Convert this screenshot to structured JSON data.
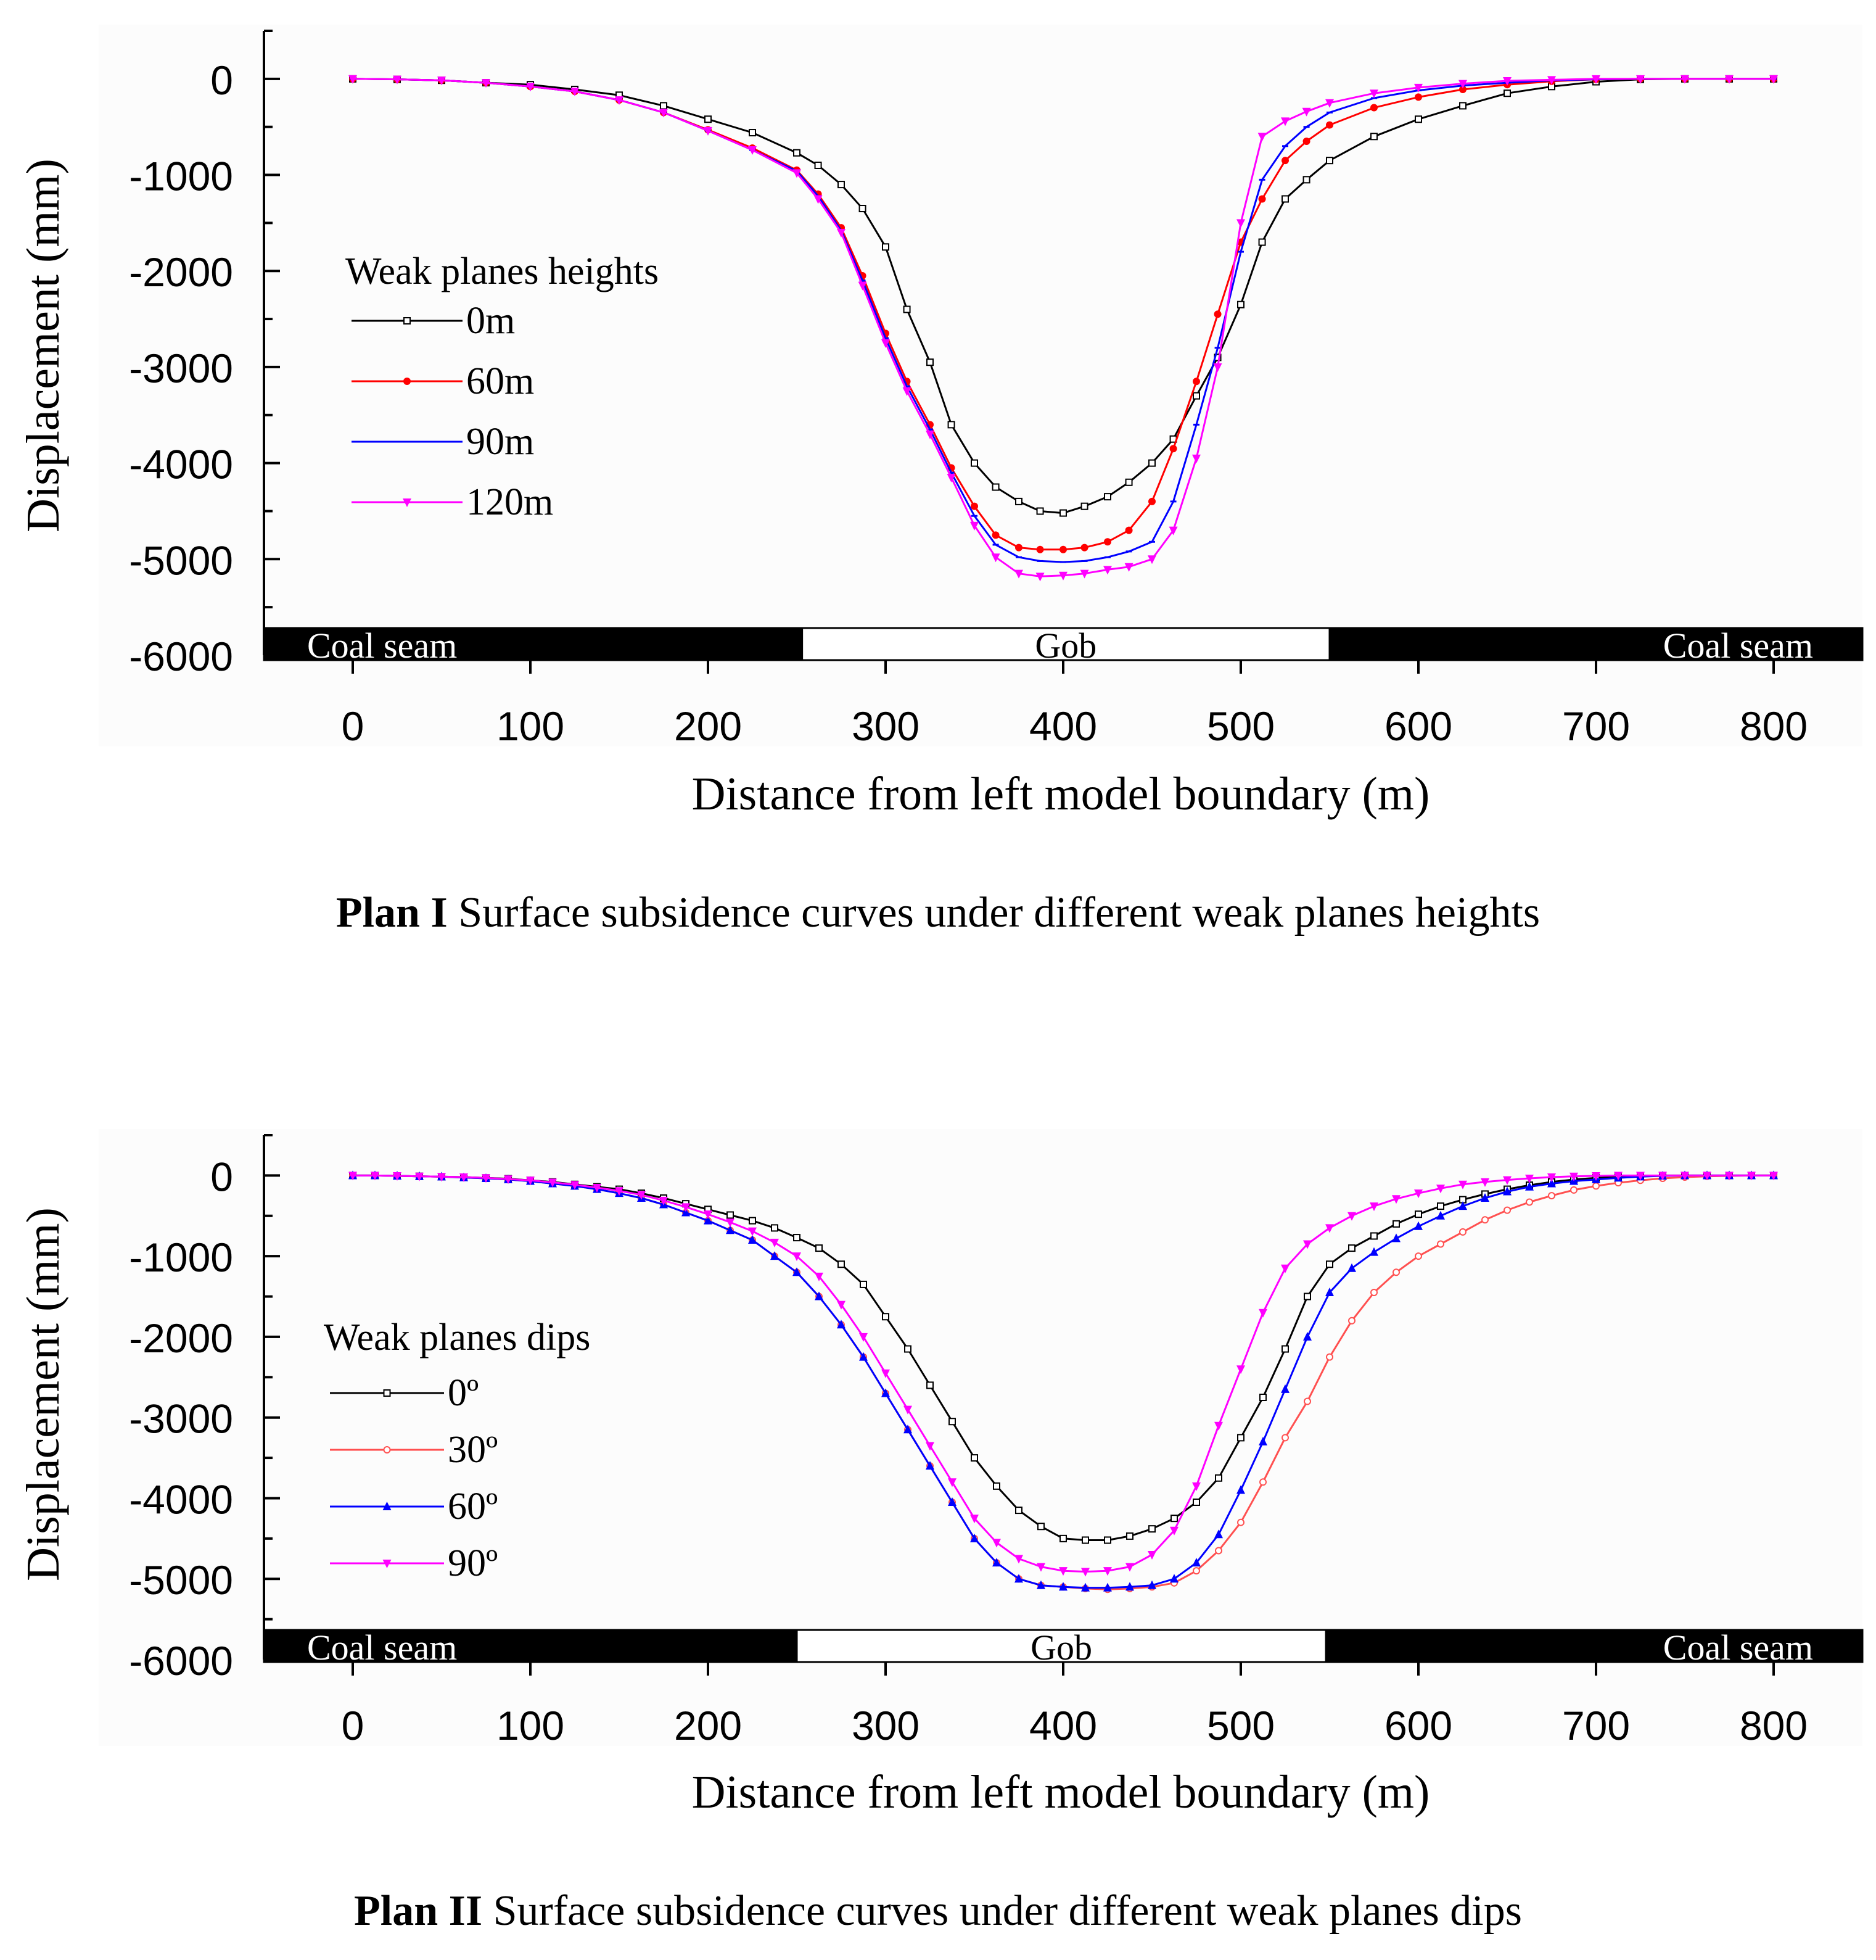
{
  "chart_data": [
    {
      "id": "plan1",
      "type": "line",
      "xlabel": "Distance from left model boundary (m)",
      "ylabel": "Displacement (mm)",
      "xlim": [
        -50,
        850
      ],
      "ylim": [
        -6000,
        500
      ],
      "xticks": [
        0,
        100,
        200,
        300,
        400,
        500,
        600,
        700,
        800
      ],
      "yticks": [
        0,
        -1000,
        -2000,
        -3000,
        -4000,
        -5000,
        -6000
      ],
      "legend_title": "Weak planes heights",
      "legend_position": "center-left",
      "bands": [
        {
          "label": "Coal seam",
          "from": -50,
          "to": 253,
          "color": "#000000",
          "text_color": "#ffffff",
          "label_align": "left"
        },
        {
          "label": "Gob",
          "from": 253,
          "to": 550,
          "color": "#ffffff",
          "text_color": "#000000",
          "label_align": "center"
        },
        {
          "label": "Coal seam",
          "from": 550,
          "to": 850,
          "color": "#000000",
          "text_color": "#ffffff",
          "label_align": "right"
        }
      ],
      "series": [
        {
          "name": "0m",
          "color": "#000000",
          "marker": "open-square",
          "x": [
            0,
            25,
            50,
            75,
            100,
            125,
            150,
            175,
            200,
            225,
            250,
            262,
            275,
            287,
            300,
            312,
            325,
            337,
            350,
            362,
            375,
            387,
            400,
            412,
            425,
            437,
            450,
            462,
            475,
            487,
            500,
            512,
            525,
            537,
            550,
            575,
            600,
            625,
            650,
            675,
            700,
            725,
            750,
            775,
            800
          ],
          "y": [
            0,
            -5,
            -15,
            -40,
            -60,
            -110,
            -170,
            -280,
            -420,
            -560,
            -770,
            -900,
            -1100,
            -1350,
            -1750,
            -2400,
            -2950,
            -3600,
            -4000,
            -4250,
            -4400,
            -4500,
            -4520,
            -4450,
            -4350,
            -4200,
            -4000,
            -3750,
            -3300,
            -2900,
            -2350,
            -1700,
            -1250,
            -1050,
            -850,
            -600,
            -420,
            -280,
            -150,
            -80,
            -30,
            -5,
            0,
            0,
            0
          ]
        },
        {
          "name": "60m",
          "color": "#ff0000",
          "marker": "filled-circle",
          "x": [
            0,
            25,
            50,
            75,
            100,
            125,
            150,
            175,
            200,
            225,
            250,
            262,
            275,
            287,
            300,
            312,
            325,
            337,
            350,
            362,
            375,
            387,
            400,
            412,
            425,
            437,
            450,
            462,
            475,
            487,
            500,
            512,
            525,
            537,
            550,
            575,
            600,
            625,
            650,
            675,
            700,
            725,
            750,
            775,
            800
          ],
          "y": [
            0,
            -5,
            -15,
            -40,
            -80,
            -130,
            -220,
            -350,
            -530,
            -720,
            -950,
            -1200,
            -1550,
            -2050,
            -2650,
            -3150,
            -3600,
            -4050,
            -4450,
            -4750,
            -4880,
            -4900,
            -4900,
            -4880,
            -4820,
            -4700,
            -4400,
            -3850,
            -3150,
            -2450,
            -1700,
            -1250,
            -850,
            -650,
            -480,
            -300,
            -190,
            -110,
            -60,
            -25,
            -5,
            0,
            0,
            0,
            0
          ]
        },
        {
          "name": "90m",
          "color": "#0000ff",
          "marker": "small-dash",
          "x": [
            0,
            25,
            50,
            75,
            100,
            125,
            150,
            175,
            200,
            225,
            250,
            262,
            275,
            287,
            300,
            312,
            325,
            337,
            350,
            362,
            375,
            387,
            400,
            412,
            425,
            437,
            450,
            462,
            475,
            487,
            500,
            512,
            525,
            537,
            550,
            575,
            600,
            625,
            650,
            675,
            700,
            725,
            750,
            775,
            800
          ],
          "y": [
            0,
            -5,
            -15,
            -40,
            -80,
            -130,
            -220,
            -350,
            -540,
            -740,
            -960,
            -1220,
            -1580,
            -2100,
            -2700,
            -3200,
            -3650,
            -4100,
            -4550,
            -4850,
            -4980,
            -5020,
            -5030,
            -5020,
            -4980,
            -4920,
            -4820,
            -4400,
            -3600,
            -2800,
            -1800,
            -1050,
            -700,
            -500,
            -350,
            -200,
            -120,
            -70,
            -40,
            -15,
            -5,
            0,
            0,
            0,
            0
          ]
        },
        {
          "name": "120m",
          "color": "#ff00ff",
          "marker": "filled-triangle-down",
          "x": [
            0,
            25,
            50,
            75,
            100,
            125,
            150,
            175,
            200,
            225,
            250,
            262,
            275,
            287,
            300,
            312,
            325,
            337,
            350,
            362,
            375,
            387,
            400,
            412,
            425,
            437,
            450,
            462,
            475,
            487,
            500,
            512,
            525,
            537,
            550,
            575,
            600,
            625,
            650,
            675,
            700,
            725,
            750,
            775,
            800
          ],
          "y": [
            0,
            -5,
            -15,
            -40,
            -80,
            -130,
            -220,
            -350,
            -540,
            -740,
            -980,
            -1250,
            -1600,
            -2150,
            -2750,
            -3250,
            -3700,
            -4150,
            -4650,
            -4980,
            -5150,
            -5180,
            -5170,
            -5150,
            -5110,
            -5080,
            -5000,
            -4700,
            -3950,
            -3000,
            -1500,
            -600,
            -440,
            -340,
            -250,
            -150,
            -90,
            -50,
            -20,
            -10,
            0,
            0,
            0,
            0,
            0
          ]
        }
      ]
    },
    {
      "id": "plan2",
      "type": "line",
      "xlabel": "Distance from left model boundary (m)",
      "ylabel": "Displacement (mm)",
      "xlim": [
        -50,
        850
      ],
      "ylim": [
        -6000,
        500
      ],
      "xticks": [
        0,
        100,
        200,
        300,
        400,
        500,
        600,
        700,
        800
      ],
      "yticks": [
        0,
        -1000,
        -2000,
        -3000,
        -4000,
        -5000,
        -6000
      ],
      "legend_title": "Weak planes dips",
      "legend_position": "center-left",
      "bands": [
        {
          "label": "Coal seam",
          "from": -50,
          "to": 250,
          "color": "#000000",
          "text_color": "#ffffff",
          "label_align": "left"
        },
        {
          "label": "Gob",
          "from": 250,
          "to": 548,
          "color": "#ffffff",
          "text_color": "#000000",
          "label_align": "center"
        },
        {
          "label": "Coal seam",
          "from": 548,
          "to": 850,
          "color": "#000000",
          "text_color": "#ffffff",
          "label_align": "right"
        }
      ],
      "series": [
        {
          "name": "0º",
          "color": "#000000",
          "marker": "open-square",
          "x": [
            0,
            12.5,
            25,
            37.5,
            50,
            62.5,
            75,
            87.5,
            100,
            112.5,
            125,
            137.5,
            150,
            162.5,
            175,
            187.5,
            200,
            212.5,
            225,
            237.5,
            250,
            262.5,
            275,
            287.5,
            300,
            312.5,
            325,
            337.5,
            350,
            362.5,
            375,
            387.5,
            400,
            412.5,
            425,
            437.5,
            450,
            462.5,
            475,
            487.5,
            500,
            512.5,
            525,
            537.5,
            550,
            562.5,
            575,
            587.5,
            600,
            612.5,
            625,
            637.5,
            650,
            662.5,
            675,
            687.5,
            700,
            712.5,
            725,
            737.5,
            750,
            762.5,
            775,
            787.5,
            800
          ],
          "y": [
            0,
            0,
            -5,
            -10,
            -15,
            -20,
            -30,
            -40,
            -60,
            -80,
            -110,
            -140,
            -170,
            -220,
            -280,
            -350,
            -420,
            -490,
            -560,
            -650,
            -770,
            -900,
            -1100,
            -1350,
            -1750,
            -2150,
            -2600,
            -3050,
            -3500,
            -3850,
            -4150,
            -4350,
            -4500,
            -4520,
            -4520,
            -4470,
            -4380,
            -4250,
            -4050,
            -3750,
            -3250,
            -2750,
            -2150,
            -1500,
            -1100,
            -900,
            -750,
            -600,
            -480,
            -380,
            -300,
            -230,
            -170,
            -120,
            -80,
            -50,
            -30,
            -15,
            -5,
            0,
            0,
            0,
            0,
            0,
            0
          ]
        },
        {
          "name": "30º",
          "color": "#ff5050",
          "marker": "open-circle",
          "x": [
            0,
            12.5,
            25,
            37.5,
            50,
            62.5,
            75,
            87.5,
            100,
            112.5,
            125,
            137.5,
            150,
            162.5,
            175,
            187.5,
            200,
            212.5,
            225,
            237.5,
            250,
            262.5,
            275,
            287.5,
            300,
            312.5,
            325,
            337.5,
            350,
            362.5,
            375,
            387.5,
            400,
            412.5,
            425,
            437.5,
            450,
            462.5,
            475,
            487.5,
            500,
            512.5,
            525,
            537.5,
            550,
            562.5,
            575,
            587.5,
            600,
            612.5,
            625,
            637.5,
            650,
            662.5,
            675,
            687.5,
            700,
            712.5,
            725,
            737.5,
            750,
            762.5,
            775,
            787.5,
            800
          ],
          "y": [
            0,
            0,
            -5,
            -10,
            -15,
            -25,
            -35,
            -50,
            -70,
            -100,
            -130,
            -170,
            -220,
            -280,
            -360,
            -460,
            -560,
            -680,
            -800,
            -1000,
            -1200,
            -1500,
            -1850,
            -2250,
            -2700,
            -3150,
            -3600,
            -4050,
            -4500,
            -4800,
            -5000,
            -5080,
            -5100,
            -5120,
            -5130,
            -5120,
            -5100,
            -5050,
            -4900,
            -4650,
            -4300,
            -3800,
            -3250,
            -2800,
            -2250,
            -1800,
            -1450,
            -1200,
            -1000,
            -850,
            -700,
            -550,
            -430,
            -330,
            -250,
            -180,
            -130,
            -90,
            -60,
            -35,
            -20,
            -10,
            -5,
            0,
            0
          ]
        },
        {
          "name": "60º",
          "color": "#0000ff",
          "marker": "filled-triangle-up",
          "x": [
            0,
            12.5,
            25,
            37.5,
            50,
            62.5,
            75,
            87.5,
            100,
            112.5,
            125,
            137.5,
            150,
            162.5,
            175,
            187.5,
            200,
            212.5,
            225,
            237.5,
            250,
            262.5,
            275,
            287.5,
            300,
            312.5,
            325,
            337.5,
            350,
            362.5,
            375,
            387.5,
            400,
            412.5,
            425,
            437.5,
            450,
            462.5,
            475,
            487.5,
            500,
            512.5,
            525,
            537.5,
            550,
            562.5,
            575,
            587.5,
            600,
            612.5,
            625,
            637.5,
            650,
            662.5,
            675,
            687.5,
            700,
            712.5,
            725,
            737.5,
            750,
            762.5,
            775,
            787.5,
            800
          ],
          "y": [
            0,
            0,
            -5,
            -10,
            -15,
            -25,
            -35,
            -50,
            -70,
            -100,
            -130,
            -170,
            -220,
            -280,
            -360,
            -460,
            -560,
            -680,
            -800,
            -1000,
            -1200,
            -1500,
            -1850,
            -2250,
            -2700,
            -3150,
            -3600,
            -4050,
            -4500,
            -4800,
            -5000,
            -5080,
            -5100,
            -5110,
            -5110,
            -5100,
            -5080,
            -5000,
            -4800,
            -4450,
            -3900,
            -3300,
            -2650,
            -2000,
            -1450,
            -1150,
            -950,
            -780,
            -630,
            -500,
            -380,
            -280,
            -200,
            -140,
            -100,
            -70,
            -50,
            -30,
            -15,
            -5,
            0,
            0,
            0,
            0,
            0
          ]
        },
        {
          "name": "90º",
          "color": "#ff00ff",
          "marker": "filled-triangle-down",
          "x": [
            0,
            12.5,
            25,
            37.5,
            50,
            62.5,
            75,
            87.5,
            100,
            112.5,
            125,
            137.5,
            150,
            162.5,
            175,
            187.5,
            200,
            212.5,
            225,
            237.5,
            250,
            262.5,
            275,
            287.5,
            300,
            312.5,
            325,
            337.5,
            350,
            362.5,
            375,
            387.5,
            400,
            412.5,
            425,
            437.5,
            450,
            462.5,
            475,
            487.5,
            500,
            512.5,
            525,
            537.5,
            550,
            562.5,
            575,
            587.5,
            600,
            612.5,
            625,
            637.5,
            650,
            662.5,
            675,
            687.5,
            700,
            712.5,
            725,
            737.5,
            750,
            762.5,
            775,
            787.5,
            800
          ],
          "y": [
            0,
            0,
            -5,
            -10,
            -15,
            -20,
            -30,
            -45,
            -60,
            -85,
            -115,
            -150,
            -190,
            -240,
            -310,
            -390,
            -480,
            -580,
            -690,
            -830,
            -1000,
            -1250,
            -1600,
            -2000,
            -2450,
            -2900,
            -3350,
            -3800,
            -4250,
            -4550,
            -4750,
            -4850,
            -4900,
            -4910,
            -4900,
            -4850,
            -4700,
            -4400,
            -3850,
            -3100,
            -2400,
            -1700,
            -1150,
            -850,
            -650,
            -500,
            -380,
            -290,
            -220,
            -160,
            -110,
            -80,
            -55,
            -35,
            -20,
            -10,
            -5,
            0,
            0,
            0,
            0,
            0,
            0,
            0,
            0
          ]
        }
      ]
    }
  ],
  "captions": {
    "plan1": {
      "bold": "Plan I",
      "text": " Surface subsidence curves under different weak planes heights"
    },
    "plan2": {
      "bold": "Plan II",
      "text": " Surface subsidence curves under different weak planes dips"
    }
  }
}
